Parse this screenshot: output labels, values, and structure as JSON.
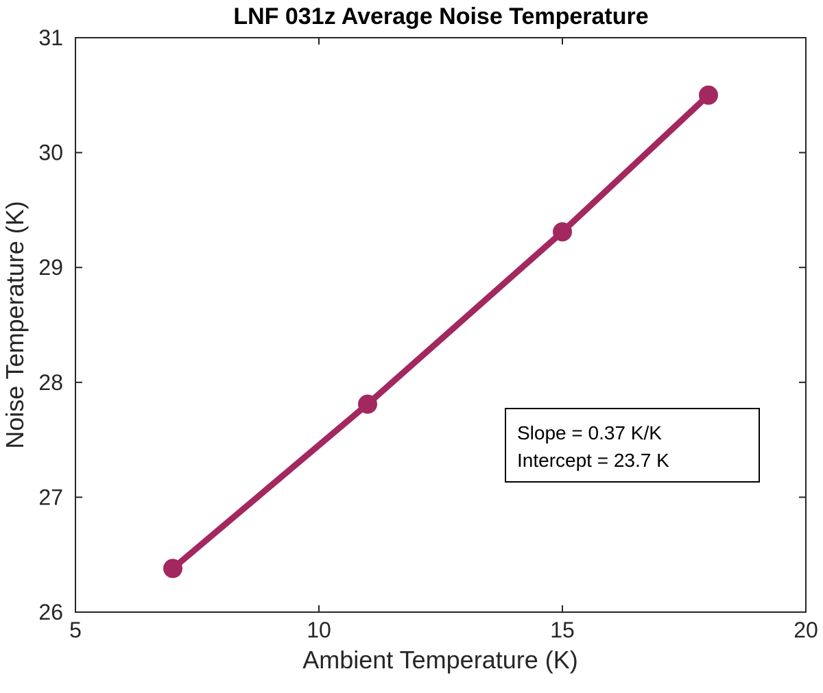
{
  "chart_data": {
    "type": "line",
    "title": "LNF 031z Average Noise Temperature",
    "xlabel": "Ambient Temperature (K)",
    "ylabel": "Noise Temperature (K)",
    "xlim": [
      5,
      20
    ],
    "ylim": [
      26,
      31
    ],
    "xticks": [
      5,
      10,
      15,
      20
    ],
    "yticks": [
      26,
      27,
      28,
      29,
      30,
      31
    ],
    "grid": false,
    "series": [
      {
        "x": [
          7,
          11,
          15,
          18
        ],
        "y": [
          26.38,
          27.81,
          29.31,
          30.5
        ],
        "color": "#a2285f",
        "marker": "circle"
      }
    ],
    "annotation": {
      "lines": [
        "Slope = 0.37 K/K",
        "Intercept = 23.7 K"
      ]
    }
  }
}
